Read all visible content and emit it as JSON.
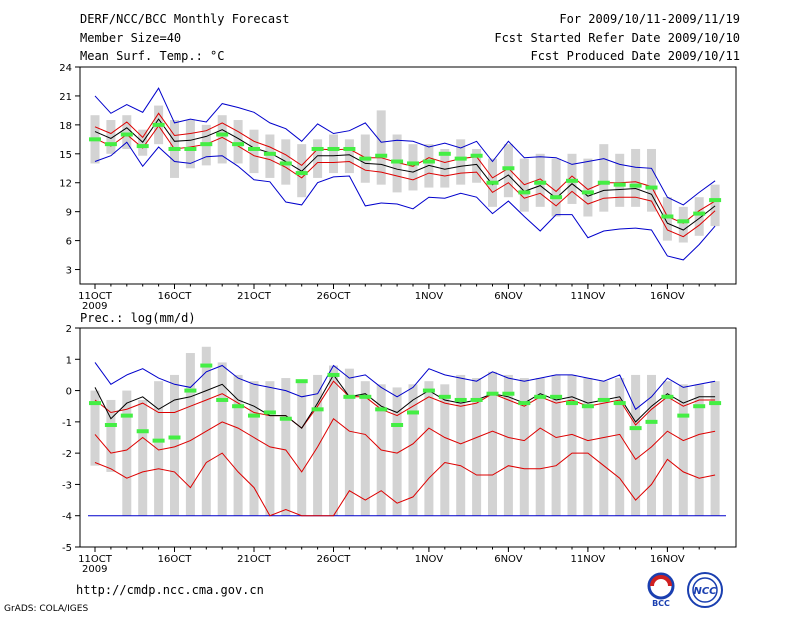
{
  "header": {
    "title": "DERF/NCC/BCC Monthly Forecast",
    "member_size": "Member Size=40",
    "variable": "Mean Surf. Temp.: °C",
    "period": "For 2009/10/11-2009/11/19",
    "started": "Fcst Started Refer Date 2009/10/10",
    "produced": "Fcst Produced Date 2009/10/11"
  },
  "footer": {
    "url": "http://cmdp.ncc.cma.gov.cn",
    "grads": "GrADS: COLA/IGES",
    "logo_bcc": "BCC",
    "logo_ncc": "NCC"
  },
  "colors": {
    "box": "#d3d3d3",
    "ensemble_mean": "#000000",
    "inner_band": "#dd0000",
    "outer_band": "#0000cc",
    "marker": "#44ee44",
    "frame": "#000000"
  },
  "chart_data": [
    {
      "type": "line",
      "title": "Mean Surf. Temp.: °C",
      "x_tick_labels": [
        "11OCT",
        "16OCT",
        "21OCT",
        "26OCT",
        "1NOV",
        "6NOV",
        "11NOV",
        "16NOV"
      ],
      "x_tick_days": [
        0,
        5,
        10,
        15,
        21,
        26,
        31,
        36
      ],
      "year_label": "2009",
      "ylim": [
        1.5,
        24
      ],
      "yticks": [
        3,
        6,
        9,
        12,
        15,
        18,
        21,
        24
      ],
      "days": [
        0,
        1,
        2,
        3,
        4,
        5,
        6,
        7,
        8,
        9,
        10,
        11,
        12,
        13,
        14,
        15,
        16,
        17,
        18,
        19,
        20,
        21,
        22,
        23,
        24,
        25,
        26,
        27,
        28,
        29,
        30,
        31,
        32,
        33,
        34,
        35,
        36,
        37,
        38,
        39
      ],
      "series": [
        {
          "name": "upper bound",
          "color": "#0000cc",
          "values": [
            21,
            19.2,
            20.1,
            19.3,
            21.8,
            18.2,
            18.6,
            18.3,
            20.2,
            19.8,
            19.3,
            18.2,
            17.6,
            16.3,
            18.1,
            17.1,
            17.4,
            18.2,
            16.2,
            16.4,
            16.3,
            15.7,
            16.1,
            15.6,
            16.3,
            14.2,
            16.3,
            14.6,
            14.7,
            14.6,
            13.9,
            14.2,
            14.5,
            13.9,
            13.6,
            13.5,
            10.5,
            9.7,
            11,
            12.2
          ]
        },
        {
          "name": "upper inner",
          "color": "#dd0000",
          "values": [
            17.8,
            17.1,
            18.3,
            16.7,
            19.2,
            16.9,
            17.1,
            17.4,
            18.2,
            17.3,
            16.3,
            15.7,
            14.9,
            13.8,
            15.5,
            15.4,
            15.5,
            14.6,
            14.6,
            14.1,
            13.7,
            14.6,
            14.1,
            14.5,
            14.7,
            12.5,
            13.5,
            11.8,
            12.4,
            11.1,
            12.7,
            11.3,
            12,
            12,
            12.1,
            11.6,
            8.5,
            7.8,
            9.1,
            10.1
          ]
        },
        {
          "name": "ensemble mean",
          "color": "#000000",
          "values": [
            17.3,
            16.6,
            17.7,
            16.2,
            18.6,
            16.3,
            16.4,
            16.8,
            17.5,
            16.6,
            15.6,
            15.1,
            14.2,
            13.2,
            14.8,
            14.8,
            14.9,
            14,
            13.9,
            13.4,
            13.1,
            13.8,
            13.4,
            13.7,
            13.9,
            11.8,
            12.8,
            11.1,
            11.7,
            10.4,
            11.9,
            10.6,
            11.2,
            11.3,
            11.4,
            10.8,
            7.8,
            7.1,
            8.3,
            9.6
          ]
        },
        {
          "name": "lower inner",
          "color": "#dd0000",
          "values": [
            16.6,
            15.8,
            17,
            15.6,
            17.9,
            15.5,
            15.7,
            16,
            16.7,
            15.8,
            14.8,
            14.4,
            13.6,
            12.5,
            14.1,
            14.1,
            14.2,
            13.3,
            13.1,
            12.7,
            12.3,
            13,
            12.7,
            13,
            13.1,
            11,
            12,
            10.4,
            10.9,
            9.6,
            11.1,
            9.8,
            10.4,
            10.5,
            10.5,
            10.1,
            7.1,
            6.4,
            7.6,
            9.1
          ]
        },
        {
          "name": "lower bound",
          "color": "#0000cc",
          "values": [
            14.2,
            14.8,
            16.2,
            13.7,
            15.7,
            14.2,
            14,
            14.7,
            14.8,
            13.7,
            12.3,
            12.1,
            10,
            9.7,
            12,
            12.6,
            12.7,
            9.6,
            9.9,
            9.8,
            9.3,
            10.5,
            10.4,
            10.9,
            10.5,
            8.8,
            10.1,
            8.5,
            7,
            8.7,
            8.7,
            6.3,
            7,
            7.2,
            7.3,
            7.1,
            4.4,
            4,
            5.6,
            7.5
          ]
        }
      ],
      "box_low": [
        14,
        15,
        15.5,
        14.8,
        16,
        12.5,
        13.5,
        13.8,
        14,
        14,
        13,
        12.5,
        11.8,
        10.5,
        12.5,
        13,
        13,
        12,
        11.8,
        11,
        11.2,
        11.5,
        11.5,
        11.8,
        12,
        9.5,
        10.5,
        9,
        9.5,
        8.5,
        9.8,
        8.5,
        9,
        9.5,
        9.5,
        9,
        6,
        5.8,
        6.5,
        7.5
      ],
      "box_high": [
        19,
        18.5,
        19,
        17.5,
        20,
        18.5,
        18.5,
        18,
        19,
        18.5,
        17.5,
        17,
        16.5,
        16,
        16.5,
        17,
        16.5,
        17,
        19.5,
        17,
        16,
        16,
        15.5,
        16.5,
        15.5,
        14.5,
        16,
        14.5,
        15,
        14.5,
        15,
        14.5,
        16,
        15,
        15.5,
        15.5,
        10.5,
        9.5,
        10.5,
        11.8
      ],
      "markers": [
        16.5,
        16,
        17,
        15.8,
        18,
        15.5,
        15.5,
        16,
        17,
        16,
        15.5,
        15,
        14,
        13,
        15.5,
        15.5,
        15.5,
        14.5,
        14.8,
        14.2,
        14,
        14.2,
        15,
        14.5,
        14.8,
        12,
        13.5,
        11,
        12,
        10.5,
        12.2,
        11,
        12,
        11.8,
        11.7,
        11.5,
        8.5,
        8,
        8.8,
        10.2
      ]
    },
    {
      "type": "line",
      "title": "Prec.: log(mm/d)",
      "x_tick_labels": [
        "11OCT",
        "16OCT",
        "21OCT",
        "26OCT",
        "1NOV",
        "6NOV",
        "11NOV",
        "16NOV"
      ],
      "x_tick_days": [
        0,
        5,
        10,
        15,
        21,
        26,
        31,
        36
      ],
      "year_label": "2009",
      "ylim": [
        -5,
        2
      ],
      "yticks": [
        -5,
        -4,
        -3,
        -2,
        -1,
        0,
        1,
        2
      ],
      "days": [
        0,
        1,
        2,
        3,
        4,
        5,
        6,
        7,
        8,
        9,
        10,
        11,
        12,
        13,
        14,
        15,
        16,
        17,
        18,
        19,
        20,
        21,
        22,
        23,
        24,
        25,
        26,
        27,
        28,
        29,
        30,
        31,
        32,
        33,
        34,
        35,
        36,
        37,
        38,
        39
      ],
      "series": [
        {
          "name": "upper bound",
          "color": "#0000cc",
          "values": [
            0.9,
            0.2,
            0.5,
            0.7,
            0.4,
            0.2,
            0.1,
            0.6,
            0.8,
            0.4,
            0.2,
            0.1,
            0,
            -0.2,
            -0.1,
            0.8,
            0.4,
            0.5,
            0.1,
            -0.2,
            0.1,
            0.7,
            0.5,
            0.4,
            0.3,
            0.6,
            0.4,
            0.3,
            0.4,
            0.5,
            0.5,
            0.4,
            0.3,
            0.5,
            -0.6,
            -0.2,
            0.4,
            0.1,
            0.2,
            0.3
          ]
        },
        {
          "name": "upper inner",
          "color": "#dd0000",
          "values": [
            -0.3,
            -0.7,
            -0.6,
            -0.4,
            -0.7,
            -0.7,
            -0.5,
            -0.3,
            -0.1,
            -0.4,
            -0.7,
            -0.8,
            -0.8,
            -1.2,
            -0.5,
            0.3,
            -0.2,
            -0.2,
            -0.6,
            -0.8,
            -0.5,
            -0.2,
            -0.4,
            -0.5,
            -0.4,
            -0.1,
            -0.3,
            -0.5,
            -0.2,
            -0.4,
            -0.3,
            -0.5,
            -0.4,
            -0.3,
            -1.1,
            -0.6,
            -0.2,
            -0.5,
            -0.3,
            -0.3
          ]
        },
        {
          "name": "ensemble mean",
          "color": "#000000",
          "values": [
            0.1,
            -0.9,
            -0.4,
            -0.2,
            -0.6,
            -0.3,
            -0.2,
            0,
            0.2,
            -0.3,
            -0.5,
            -0.8,
            -0.8,
            -1.2,
            -0.4,
            0.5,
            -0.2,
            -0.1,
            -0.5,
            -0.7,
            -0.3,
            0,
            -0.3,
            -0.4,
            -0.3,
            -0.1,
            -0.2,
            -0.4,
            -0.1,
            -0.3,
            -0.2,
            -0.4,
            -0.3,
            -0.2,
            -1.0,
            -0.5,
            -0.1,
            -0.4,
            -0.2,
            -0.2
          ]
        },
        {
          "name": "lower inner",
          "color": "#dd0000",
          "values": [
            -1.4,
            -2.0,
            -1.9,
            -1.5,
            -1.9,
            -1.8,
            -1.6,
            -1.3,
            -1.0,
            -1.2,
            -1.5,
            -1.8,
            -1.9,
            -2.6,
            -1.8,
            -0.9,
            -1.3,
            -1.4,
            -1.9,
            -2.0,
            -1.7,
            -1.2,
            -1.5,
            -1.7,
            -1.5,
            -1.3,
            -1.5,
            -1.6,
            -1.2,
            -1.5,
            -1.4,
            -1.6,
            -1.5,
            -1.4,
            -2.2,
            -1.8,
            -1.3,
            -1.6,
            -1.4,
            -1.3
          ]
        },
        {
          "name": "lower bound",
          "color": "#dd0000",
          "values": [
            -2.3,
            -2.5,
            -2.8,
            -2.6,
            -2.5,
            -2.6,
            -3.1,
            -2.3,
            -2.0,
            -2.6,
            -3.1,
            -4.0,
            -3.8,
            -4.0,
            -4.0,
            -4.0,
            -3.2,
            -3.5,
            -3.2,
            -3.6,
            -3.4,
            -2.8,
            -2.3,
            -2.4,
            -2.7,
            -2.7,
            -2.4,
            -2.5,
            -2.5,
            -2.4,
            -2.0,
            -2.0,
            -2.4,
            -2.8,
            -3.5,
            -3.0,
            -2.2,
            -2.6,
            -2.8,
            -2.7
          ]
        }
      ],
      "floor_line": {
        "value": -4,
        "color": "#0000cc"
      },
      "box_low": [
        -2.4,
        -2.6,
        -4,
        -4,
        -4,
        -4,
        -4,
        -4,
        -4,
        -4,
        -4,
        -4,
        -4,
        -4,
        -4,
        -4,
        -4,
        -4,
        -4,
        -4,
        -4,
        -4,
        -4,
        -4,
        -4,
        -4,
        -4,
        -4,
        -4,
        -4,
        -4,
        -4,
        -4,
        -4,
        -4,
        -4,
        -4,
        -4,
        -4,
        -4
      ],
      "box_high": [
        0,
        -0.3,
        0,
        -0.3,
        0.3,
        0.5,
        1.2,
        1.4,
        0.9,
        0.5,
        0.3,
        0.3,
        0.4,
        0.3,
        0.5,
        0.8,
        0.7,
        0.3,
        0.2,
        0.1,
        0.2,
        0.3,
        0.2,
        0.5,
        0.4,
        0.6,
        0.5,
        0.4,
        0.4,
        0.5,
        0.5,
        0.4,
        0.3,
        0.4,
        0.5,
        0.5,
        0.3,
        0.2,
        0.2,
        0.3
      ],
      "markers": [
        -0.4,
        -1.1,
        -0.8,
        -1.3,
        -1.6,
        -1.5,
        0,
        0.8,
        -0.3,
        -0.5,
        -0.8,
        -0.7,
        -0.9,
        0.3,
        -0.6,
        0.5,
        -0.2,
        -0.2,
        -0.6,
        -1.1,
        -0.7,
        0,
        -0.2,
        -0.3,
        -0.3,
        -0.1,
        -0.1,
        -0.4,
        -0.2,
        -0.2,
        -0.4,
        -0.5,
        -0.3,
        -0.4,
        -1.2,
        -1.0,
        -0.2,
        -0.8,
        -0.5,
        -0.4
      ]
    }
  ]
}
